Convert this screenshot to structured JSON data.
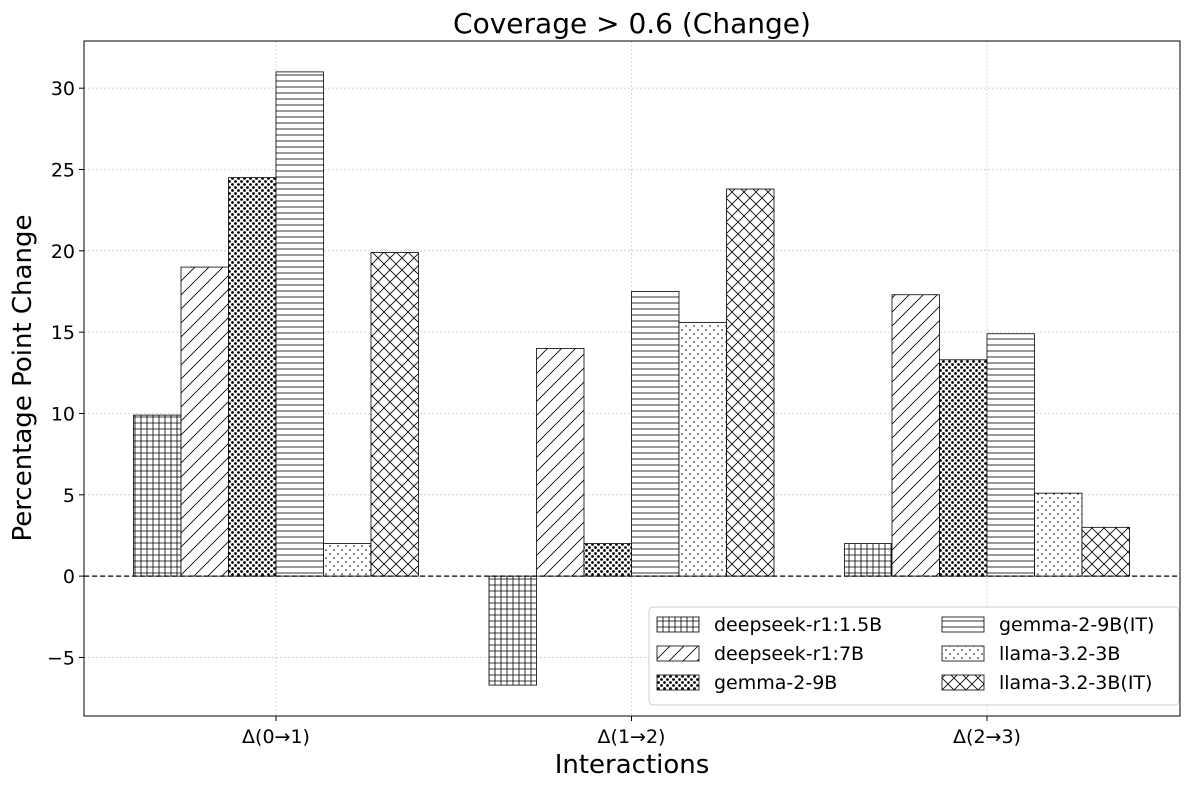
{
  "chart_data": {
    "type": "bar",
    "title": "Coverage > 0.6 (Change)",
    "xlabel": "Interactions",
    "ylabel": "Percentage Point Change",
    "categories": [
      "Δ(0→1)",
      "Δ(1→2)",
      "Δ(2→3)"
    ],
    "ylim": [
      -8.6,
      32.9
    ],
    "yticks": [
      -5,
      0,
      5,
      10,
      15,
      20,
      25,
      30
    ],
    "ytick_labels": [
      "−5",
      "0",
      "5",
      "10",
      "15",
      "20",
      "25",
      "30"
    ],
    "grid": true,
    "zero_line": "dashed",
    "legend_position": "lower-right",
    "series": [
      {
        "name": "deepseek-r1:1.5B",
        "pattern": "grid-hatch",
        "values": [
          9.9,
          -6.7,
          2.0
        ]
      },
      {
        "name": "deepseek-r1:7B",
        "pattern": "diagonal-hatch",
        "values": [
          19.0,
          14.0,
          17.3
        ]
      },
      {
        "name": "gemma-2-9B",
        "pattern": "star-hatch",
        "values": [
          24.5,
          2.0,
          13.3
        ]
      },
      {
        "name": "gemma-2-9B(IT)",
        "pattern": "horizontal-hatch",
        "values": [
          31.0,
          17.5,
          14.9
        ]
      },
      {
        "name": "llama-3.2-3B",
        "pattern": "dot-hatch",
        "values": [
          2.0,
          15.6,
          5.1
        ]
      },
      {
        "name": "llama-3.2-3B(IT)",
        "pattern": "cross-hatch",
        "values": [
          19.9,
          23.8,
          3.0
        ]
      }
    ]
  }
}
